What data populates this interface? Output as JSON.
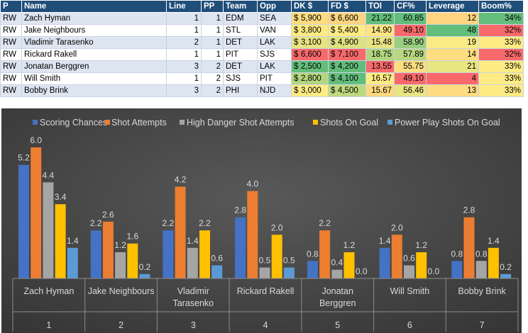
{
  "table": {
    "headers": [
      "P",
      "Name",
      "Line",
      "PP",
      "Team",
      "Opp",
      "DK $",
      "FD $",
      "TOI",
      "CF%",
      "Leverage",
      "Boom%"
    ],
    "rows": [
      {
        "P": "RW",
        "Name": "Zach Hyman",
        "Line": "1",
        "PP": "1",
        "Team": "EDM",
        "Opp": "SEA",
        "DK": "5,900",
        "FD": "6,600",
        "TOI": "21.22",
        "CF": "60.85",
        "Leverage": "12",
        "Boom": "34%"
      },
      {
        "P": "RW",
        "Name": "Jake Neighbours",
        "Line": "1",
        "PP": "1",
        "Team": "STL",
        "Opp": "VAN",
        "DK": "3,800",
        "FD": "5,400",
        "TOI": "14.90",
        "CF": "49.10",
        "Leverage": "48",
        "Boom": "32%"
      },
      {
        "P": "RW",
        "Name": "Vladimir Tarasenko",
        "Line": "2",
        "PP": "1",
        "Team": "DET",
        "Opp": "LAK",
        "DK": "3,100",
        "FD": "4,900",
        "TOI": "15.48",
        "CF": "58.90",
        "Leverage": "19",
        "Boom": "33%"
      },
      {
        "P": "RW",
        "Name": "Rickard Rakell",
        "Line": "1",
        "PP": "1",
        "Team": "PIT",
        "Opp": "SJS",
        "DK": "6,600",
        "FD": "7,100",
        "TOI": "18.75",
        "CF": "57.89",
        "Leverage": "14",
        "Boom": "32%"
      },
      {
        "P": "RW",
        "Name": "Jonatan Berggren",
        "Line": "3",
        "PP": "2",
        "Team": "DET",
        "Opp": "LAK",
        "DK": "2,500",
        "FD": "4,200",
        "TOI": "13.55",
        "CF": "55.75",
        "Leverage": "21",
        "Boom": "33%"
      },
      {
        "P": "RW",
        "Name": "Will Smith",
        "Line": "1",
        "PP": "2",
        "Team": "SJS",
        "Opp": "PIT",
        "DK": "2,800",
        "FD": "4,100",
        "TOI": "16.57",
        "CF": "49.10",
        "Leverage": "4",
        "Boom": "33%"
      },
      {
        "P": "RW",
        "Name": "Bobby Brink",
        "Line": "3",
        "PP": "2",
        "Team": "PHI",
        "Opp": "NJD",
        "DK": "3,000",
        "FD": "4,500",
        "TOI": "15.67",
        "CF": "56.46",
        "Leverage": "13",
        "Boom": "33%"
      }
    ],
    "colors": {
      "DK": [
        "#fddb7f",
        "#fdea82",
        "#e7e383",
        "#f8696b",
        "#63be7b",
        "#b3d680",
        "#fdeb84"
      ],
      "FD": [
        "#fed480",
        "#ffeb84",
        "#dde27f",
        "#f8696b",
        "#63be7b",
        "#63be7b",
        "#bcd97f"
      ],
      "TOI": [
        "#63be7b",
        "#fee582",
        "#e8e382",
        "#b0d57f",
        "#f8696b",
        "#ffeb84",
        "#fed77f"
      ],
      "CF": [
        "#63be7b",
        "#f8696b",
        "#98ce7f",
        "#b8d780",
        "#fcde81",
        "#f8696b",
        "#eae583"
      ],
      "Leverage": [
        "#fed480",
        "#63be7b",
        "#f9ec84",
        "#fedd81",
        "#e8e583",
        "#f8696b",
        "#fedb80"
      ],
      "Boom": [
        "#63be7b",
        "#f8696b",
        "#ffeb84",
        "#f8696b",
        "#ffeb84",
        "#ffeb84",
        "#ffeb84"
      ]
    }
  },
  "chart_data": {
    "type": "bar",
    "title": "",
    "xlabel": "",
    "ylabel": "",
    "ylim": [
      0,
      6.6
    ],
    "grid": false,
    "legend_position": "top",
    "categories": [
      "Zach Hyman",
      "Jake Neighbours",
      "Vladimir Tarasenko",
      "Rickard Rakell",
      "Jonatan Berggren",
      "Will Smith",
      "Bobby Brink"
    ],
    "category_lines": [
      [
        "Zach Hyman"
      ],
      [
        "Jake Neighbours"
      ],
      [
        "Vladimir",
        "Tarasenko"
      ],
      [
        "Rickard Rakell"
      ],
      [
        "Jonatan",
        "Berggren"
      ],
      [
        "Will Smith"
      ],
      [
        "Bobby Brink"
      ]
    ],
    "indices": [
      "1",
      "2",
      "3",
      "4",
      "5",
      "6",
      "7"
    ],
    "series": [
      {
        "name": "Scoring Chances",
        "color": "#4472c4",
        "values": [
          5.2,
          2.2,
          2.2,
          2.8,
          0.8,
          1.4,
          0.8
        ],
        "labels": [
          "5.2",
          "2.2",
          "2.2",
          "2.8",
          "0.8",
          "1.4",
          "0.8"
        ]
      },
      {
        "name": "Shot Attempts",
        "color": "#ed7d31",
        "values": [
          6.0,
          2.6,
          4.2,
          4.0,
          2.2,
          2.0,
          2.8
        ],
        "labels": [
          "6.0",
          "2.6",
          "4.2",
          "4.0",
          "2.2",
          "2.0",
          "2.8"
        ]
      },
      {
        "name": "High Danger Shot Attempts",
        "color": "#a5a5a5",
        "values": [
          4.4,
          1.2,
          1.4,
          0.5,
          0.4,
          0.6,
          0.8
        ],
        "labels": [
          "4.4",
          "1.2",
          "1.4",
          "0.5",
          "0.4",
          "0.6",
          "0.8"
        ]
      },
      {
        "name": "Shots On Goal",
        "color": "#ffc000",
        "values": [
          3.4,
          1.6,
          2.2,
          2.0,
          1.2,
          1.2,
          1.4
        ],
        "labels": [
          "3.4",
          "1.6",
          "2.2",
          "2.0",
          "1.2",
          "1.2",
          "1.4"
        ]
      },
      {
        "name": "Power Play Shots On Goal",
        "color": "#5b9bd5",
        "values": [
          1.4,
          0.2,
          0.6,
          0.5,
          0.0,
          0.0,
          0.2
        ],
        "labels": [
          "1.4",
          "0.2",
          "0.6",
          "0.5",
          "0.0",
          "0.0",
          "0.2"
        ]
      }
    ]
  }
}
